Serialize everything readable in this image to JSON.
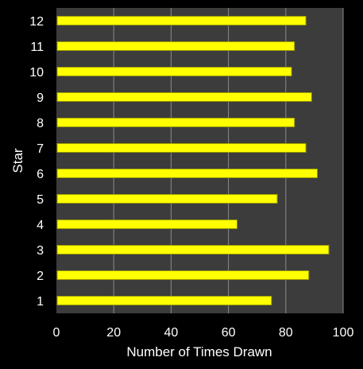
{
  "colors": {
    "background": "#000000",
    "plot_area": "#3c3c3c",
    "gridline": "#8a8a8a",
    "bar_fill": "#ffff00",
    "bar_edge": "#9a9a00",
    "text": "#ffffff"
  },
  "chart_data": {
    "type": "bar",
    "orientation": "horizontal",
    "title": "",
    "xlabel": "Number of Times Drawn",
    "ylabel": "Star",
    "xlim": [
      0,
      100
    ],
    "x_ticks": [
      0,
      20,
      40,
      60,
      80,
      100
    ],
    "grid": true,
    "legend": "none",
    "categories": [
      "1",
      "2",
      "3",
      "4",
      "5",
      "6",
      "7",
      "8",
      "9",
      "10",
      "11",
      "12"
    ],
    "values": [
      75,
      88,
      95,
      63,
      77,
      91,
      87,
      83,
      89,
      82,
      83,
      87
    ]
  }
}
